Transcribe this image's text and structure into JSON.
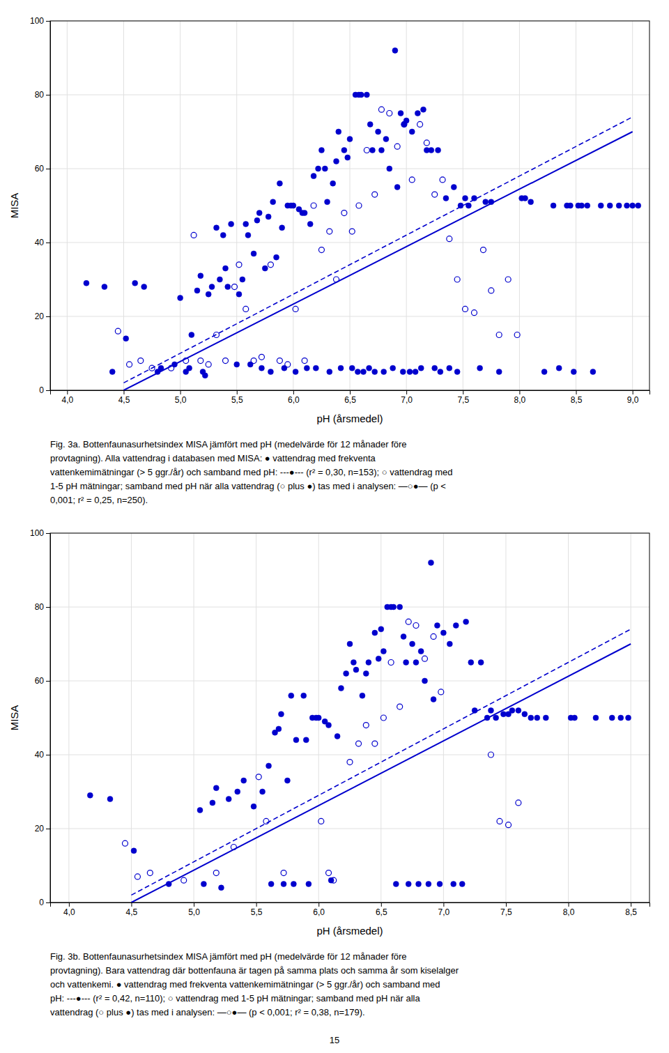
{
  "chart_data": [
    {
      "type": "scatter",
      "xlabel": "pH (årsmedel)",
      "ylabel": "MISA",
      "xlim": [
        3.85,
        9.15
      ],
      "ylim": [
        0,
        100
      ],
      "xticks": [
        {
          "value": 4.0,
          "label": "4,0"
        },
        {
          "value": 4.5,
          "label": "4,5"
        },
        {
          "value": 5.0,
          "label": "5,0"
        },
        {
          "value": 5.5,
          "label": "5,5"
        },
        {
          "value": 6.0,
          "label": "6,0"
        },
        {
          "value": 6.5,
          "label": "6,5"
        },
        {
          "value": 7.0,
          "label": "7,0"
        },
        {
          "value": 7.5,
          "label": "7,5"
        },
        {
          "value": 8.0,
          "label": "8,0"
        },
        {
          "value": 8.5,
          "label": "8,5"
        },
        {
          "value": 9.0,
          "label": "9,0"
        }
      ],
      "yticks": [
        0,
        20,
        40,
        60,
        80,
        100
      ],
      "grid": true,
      "series": [
        {
          "type": "line",
          "line_style": "solid",
          "color": "#0000cd",
          "x": [
            4.5,
            9.0
          ],
          "values": [
            0.0,
            70.0
          ]
        },
        {
          "type": "line",
          "line_style": "dashed",
          "color": "#0000cd",
          "x": [
            4.5,
            9.0
          ],
          "values": [
            2.0,
            74.0
          ]
        },
        {
          "type": "scatter",
          "marker": "open",
          "color": "#0000cd",
          "x": [
            4.45,
            4.55,
            4.65,
            4.75,
            4.92,
            5.05,
            5.12,
            5.18,
            5.25,
            5.32,
            5.4,
            5.48,
            5.52,
            5.58,
            5.65,
            5.72,
            5.8,
            5.88,
            5.95,
            6.02,
            6.1,
            6.18,
            6.25,
            6.32,
            6.38,
            6.45,
            6.52,
            6.58,
            6.65,
            6.72,
            6.78,
            6.85,
            6.92,
            6.98,
            7.05,
            7.12,
            7.18,
            7.25,
            7.32,
            7.38,
            7.45,
            7.52,
            7.6,
            7.68,
            7.75,
            7.82,
            7.9,
            7.98
          ],
          "values": [
            16,
            7,
            8,
            6,
            6,
            8,
            42,
            8,
            7,
            15,
            8,
            28,
            34,
            22,
            8,
            9,
            34,
            8,
            7,
            22,
            8,
            50,
            38,
            43,
            30,
            48,
            43,
            50,
            65,
            53,
            76,
            75,
            66,
            72,
            57,
            72,
            67,
            53,
            57,
            41,
            30,
            22,
            21,
            38,
            27,
            15,
            30,
            15
          ]
        },
        {
          "type": "scatter",
          "marker": "filled",
          "color": "#0000cd",
          "x": [
            4.17,
            4.33,
            4.4,
            4.52,
            4.6,
            4.68,
            4.8,
            4.83,
            4.95,
            5.0,
            5.05,
            5.08,
            5.1,
            5.15,
            5.18,
            5.2,
            5.22,
            5.25,
            5.28,
            5.32,
            5.35,
            5.38,
            5.4,
            5.42,
            5.45,
            5.5,
            5.52,
            5.55,
            5.58,
            5.6,
            5.62,
            5.65,
            5.68,
            5.7,
            5.72,
            5.75,
            5.78,
            5.8,
            5.82,
            5.85,
            5.88,
            5.9,
            5.92,
            5.95,
            5.98,
            6.0,
            6.02,
            6.05,
            6.08,
            6.1,
            6.12,
            6.15,
            6.18,
            6.2,
            6.22,
            6.25,
            6.28,
            6.3,
            6.32,
            6.35,
            6.38,
            6.4,
            6.42,
            6.45,
            6.48,
            6.5,
            6.52,
            6.55,
            6.57,
            6.58,
            6.6,
            6.62,
            6.65,
            6.67,
            6.68,
            6.7,
            6.72,
            6.75,
            6.78,
            6.8,
            6.82,
            6.85,
            6.88,
            6.9,
            6.92,
            6.95,
            6.97,
            6.98,
            7.0,
            7.03,
            7.05,
            7.08,
            7.1,
            7.13,
            7.15,
            7.18,
            7.22,
            7.25,
            7.28,
            7.3,
            7.35,
            7.38,
            7.42,
            7.45,
            7.48,
            7.52,
            7.55,
            7.6,
            7.65,
            7.7,
            7.75,
            7.82,
            8.02,
            8.05,
            8.1,
            8.22,
            8.3,
            8.35,
            8.42,
            8.45,
            8.48,
            8.52,
            8.55,
            8.6,
            8.65,
            8.72,
            8.8,
            8.88,
            8.95,
            9.0,
            9.05
          ],
          "values": [
            29,
            28,
            5,
            14,
            29,
            28,
            5,
            6,
            7,
            25,
            5,
            6,
            15,
            27,
            31,
            5,
            4,
            26,
            28,
            44,
            30,
            42,
            33,
            28,
            45,
            7,
            26,
            30,
            45,
            42,
            7,
            37,
            46,
            48,
            6,
            33,
            47,
            5,
            51,
            36,
            56,
            44,
            6,
            50,
            50,
            50,
            5,
            49,
            48,
            48,
            6,
            45,
            58,
            6,
            60,
            65,
            60,
            51,
            5,
            56,
            62,
            70,
            6,
            65,
            63,
            68,
            6,
            80,
            5,
            80,
            80,
            5,
            80,
            6,
            72,
            65,
            5,
            70,
            65,
            5,
            68,
            60,
            6,
            92,
            55,
            75,
            5,
            72,
            73,
            5,
            70,
            5,
            75,
            6,
            76,
            65,
            65,
            6,
            65,
            5,
            52,
            6,
            55,
            5,
            50,
            52,
            50,
            52,
            6,
            51,
            51,
            5,
            52,
            52,
            51,
            5,
            50,
            6,
            50,
            50,
            5,
            50,
            50,
            50,
            5,
            50,
            50,
            50,
            50,
            50,
            50
          ]
        }
      ],
      "caption": [
        "Fig. 3a. Bottenfaunasurhetsindex MISA jämfört med pH (medelvärde för 12 månader före",
        "provtagning). Alla vattendrag i databasen med MISA: ● vattendrag med frekventa",
        "vattenkemimätningar (> 5 ggr./år) och samband med pH: ---●--- (r² = 0,30, n=153); ○ vattendrag med",
        "1-5 pH mätningar; samband med pH när alla vattendrag (○ plus ●) tas med i analysen: —○●— (p <",
        "0,001; r² = 0,25, n=250)."
      ]
    },
    {
      "type": "scatter",
      "xlabel": "pH (årsmedel)",
      "ylabel": "MISA",
      "xlim": [
        3.85,
        8.65
      ],
      "ylim": [
        0,
        100
      ],
      "xticks": [
        {
          "value": 4.0,
          "label": "4,0"
        },
        {
          "value": 4.5,
          "label": "4,5"
        },
        {
          "value": 5.0,
          "label": "5,0"
        },
        {
          "value": 5.5,
          "label": "5,5"
        },
        {
          "value": 6.0,
          "label": "6,0"
        },
        {
          "value": 6.5,
          "label": "6,5"
        },
        {
          "value": 7.0,
          "label": "7,0"
        },
        {
          "value": 7.5,
          "label": "7,5"
        },
        {
          "value": 8.0,
          "label": "8,0"
        },
        {
          "value": 8.5,
          "label": "8,5"
        }
      ],
      "yticks": [
        0,
        20,
        40,
        60,
        80,
        100
      ],
      "grid": true,
      "series": [
        {
          "type": "line",
          "line_style": "solid",
          "color": "#0000cd",
          "x": [
            4.5,
            8.5
          ],
          "values": [
            0.0,
            70.0
          ]
        },
        {
          "type": "line",
          "line_style": "dashed",
          "color": "#0000cd",
          "x": [
            4.5,
            8.5
          ],
          "values": [
            2.0,
            74.0
          ]
        },
        {
          "type": "scatter",
          "marker": "open",
          "color": "#0000cd",
          "x": [
            4.45,
            4.55,
            4.65,
            4.92,
            5.18,
            5.32,
            5.52,
            5.58,
            5.72,
            6.02,
            6.08,
            6.12,
            6.25,
            6.32,
            6.38,
            6.45,
            6.52,
            6.58,
            6.65,
            6.72,
            6.78,
            6.85,
            6.92,
            6.98,
            7.38,
            7.45,
            7.52,
            7.6
          ],
          "values": [
            16,
            7,
            8,
            6,
            8,
            15,
            34,
            22,
            8,
            22,
            8,
            6,
            38,
            43,
            48,
            43,
            50,
            65,
            53,
            76,
            75,
            66,
            72,
            57,
            40,
            22,
            21,
            27
          ]
        },
        {
          "type": "scatter",
          "marker": "filled",
          "color": "#0000cd",
          "x": [
            4.17,
            4.33,
            4.52,
            4.8,
            5.05,
            5.08,
            5.15,
            5.18,
            5.22,
            5.28,
            5.35,
            5.4,
            5.48,
            5.55,
            5.6,
            5.62,
            5.65,
            5.68,
            5.7,
            5.72,
            5.75,
            5.78,
            5.8,
            5.82,
            5.88,
            5.9,
            5.92,
            5.95,
            5.98,
            6.0,
            6.05,
            6.08,
            6.1,
            6.15,
            6.18,
            6.22,
            6.25,
            6.28,
            6.3,
            6.35,
            6.38,
            6.4,
            6.45,
            6.48,
            6.5,
            6.52,
            6.55,
            6.58,
            6.6,
            6.62,
            6.65,
            6.68,
            6.7,
            6.72,
            6.75,
            6.78,
            6.8,
            6.82,
            6.85,
            6.88,
            6.9,
            6.92,
            6.95,
            6.97,
            7.0,
            7.05,
            7.08,
            7.1,
            7.15,
            7.18,
            7.22,
            7.25,
            7.3,
            7.35,
            7.38,
            7.42,
            7.48,
            7.52,
            7.55,
            7.6,
            7.65,
            7.7,
            7.75,
            7.82,
            8.02,
            8.05,
            8.22,
            8.35,
            8.42,
            8.48
          ],
          "values": [
            29,
            28,
            14,
            5,
            25,
            5,
            27,
            31,
            4,
            28,
            30,
            33,
            26,
            30,
            37,
            5,
            46,
            47,
            51,
            5,
            33,
            56,
            5,
            44,
            56,
            44,
            5,
            50,
            50,
            50,
            49,
            48,
            6,
            45,
            58,
            62,
            70,
            65,
            63,
            56,
            62,
            65,
            73,
            66,
            74,
            68,
            80,
            80,
            80,
            5,
            80,
            72,
            65,
            5,
            70,
            65,
            5,
            68,
            60,
            5,
            92,
            55,
            75,
            5,
            73,
            70,
            5,
            75,
            5,
            76,
            65,
            52,
            65,
            50,
            52,
            50,
            51,
            51,
            52,
            52,
            51,
            50,
            50,
            50,
            50,
            50,
            50,
            50,
            50,
            50
          ]
        }
      ],
      "caption": [
        "Fig. 3b. Bottenfaunasurhetsindex MISA jämfört med pH (medelvärde för 12 månader före",
        "provtagning). Bara vattendrag där bottenfauna är tagen på samma plats och samma år som kiselalger",
        "och vattenkemi. ● vattendrag med frekventa vattenkemimätningar (> 5 ggr./år) och samband med",
        "pH: ---●--- (r² = 0,42, n=110); ○ vattendrag med 1-5 pH mätningar; samband med pH när alla",
        "vattendrag (○ plus ●) tas med i analysen: —○●— (p < 0,001; r² = 0,38, n=179)."
      ]
    }
  ],
  "page_number": "15"
}
